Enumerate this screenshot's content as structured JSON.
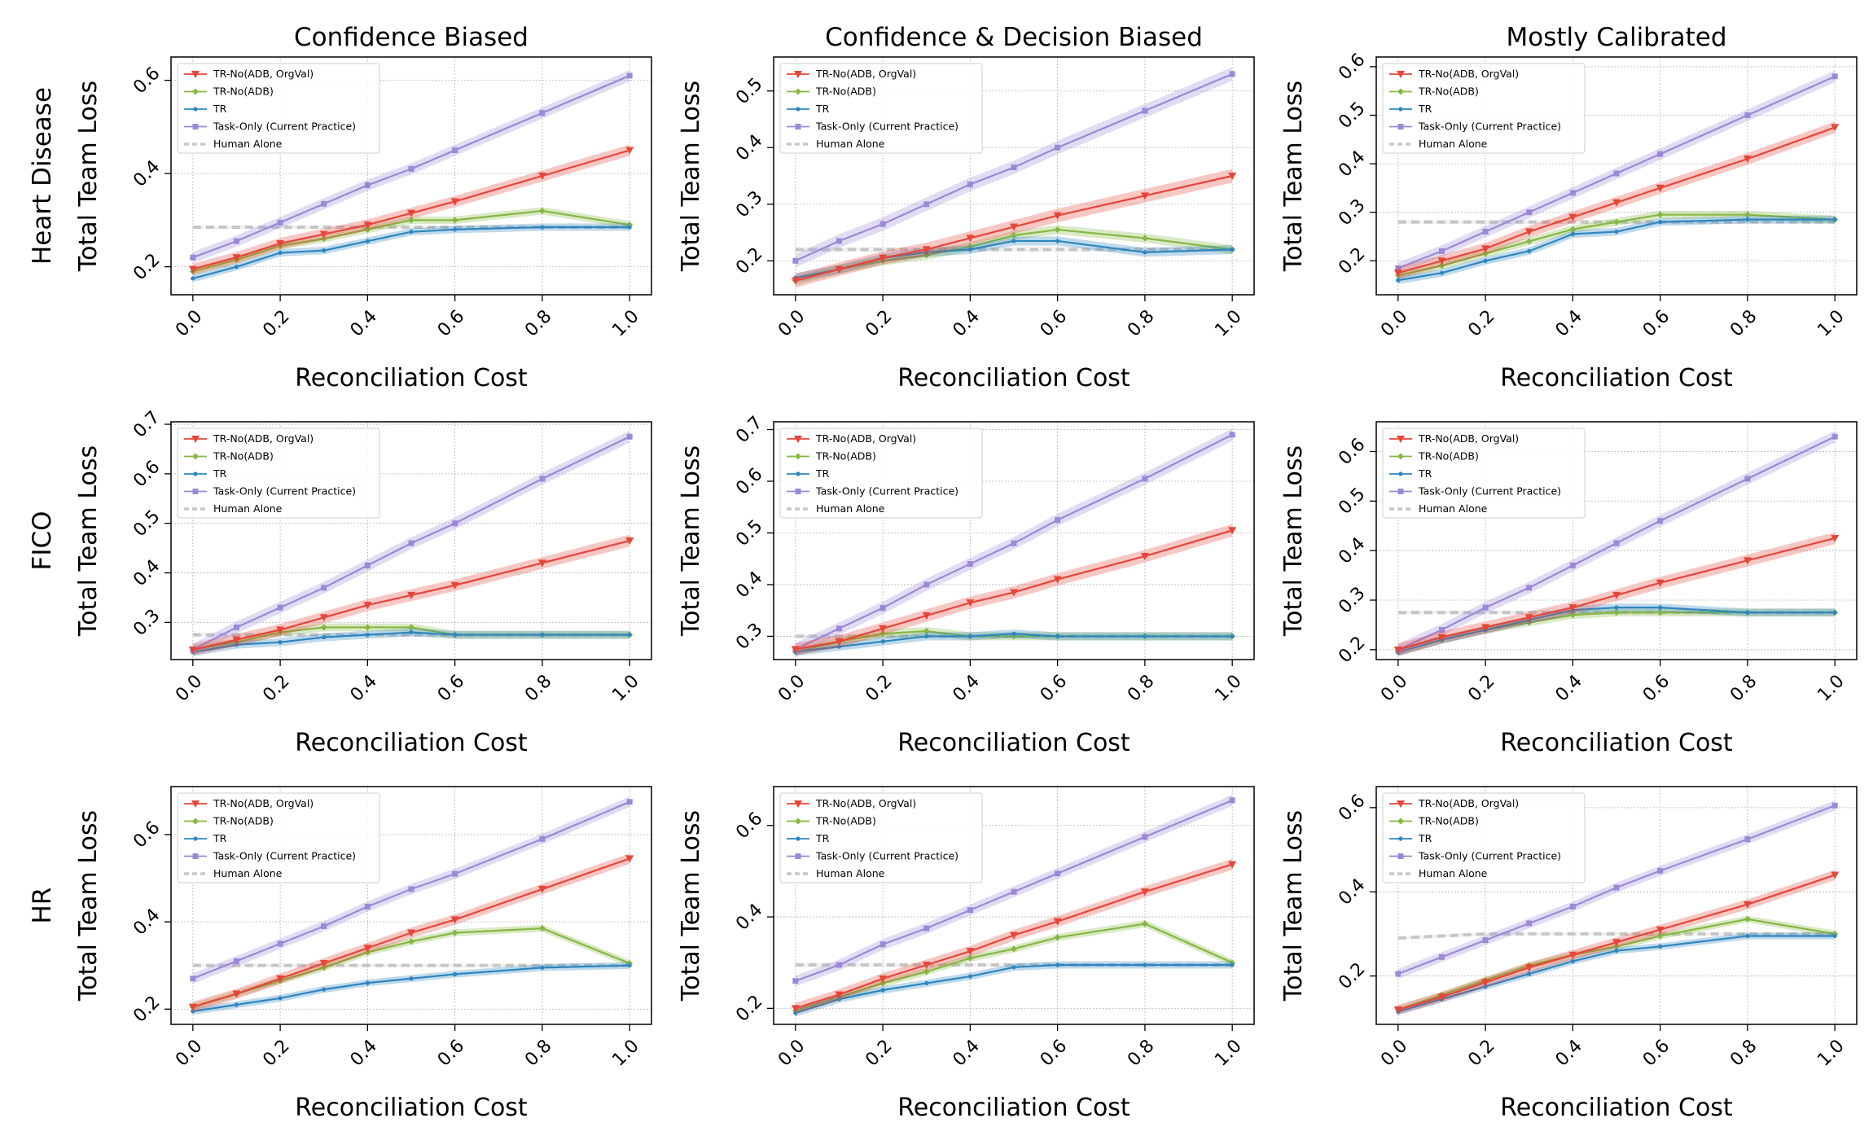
{
  "figure": {
    "column_titles": [
      "Confidence Biased",
      "Confidence & Decision Biased",
      "Mostly Calibrated"
    ],
    "row_labels": [
      "Heart Disease",
      "FICO",
      "HR"
    ]
  },
  "legend_entries": [
    "TR-No(ADB, OrgVal)",
    "TR-No(ADB)",
    "TR",
    "Task-Only (Current Practice)",
    "Human Alone"
  ],
  "colors": {
    "tr_no_adb_orgval": "#e6463a",
    "tr_no_adb": "#86b743",
    "tr": "#2f86c0",
    "task_only": "#9a8ad6",
    "human_alone": "#c6c6c6"
  },
  "chart_data": [
    {
      "type": "line",
      "row": "Heart Disease",
      "column": "Confidence Biased",
      "title": "Confidence Biased",
      "xlabel": "Reconciliation Cost",
      "ylabel": "Total Team Loss",
      "xlim": [
        -0.05,
        1.05
      ],
      "ylim": [
        0.14,
        0.65
      ],
      "yticks": [
        0.2,
        0.4,
        0.6
      ],
      "xticks": [
        0.0,
        0.2,
        0.4,
        0.6,
        0.8,
        1.0
      ],
      "grid": true,
      "legend": "top-left",
      "x": [
        0.0,
        0.1,
        0.2,
        0.3,
        0.4,
        0.5,
        0.6,
        0.8,
        1.0
      ],
      "series": [
        {
          "name": "TR-No(ADB, OrgVal)",
          "values": [
            0.195,
            0.22,
            0.25,
            0.27,
            0.29,
            0.315,
            0.34,
            0.395,
            0.45
          ]
        },
        {
          "name": "TR-No(ADB)",
          "values": [
            0.19,
            0.215,
            0.245,
            0.26,
            0.28,
            0.3,
            0.3,
            0.32,
            0.29
          ]
        },
        {
          "name": "TR",
          "values": [
            0.175,
            0.2,
            0.23,
            0.235,
            0.255,
            0.275,
            0.28,
            0.285,
            0.285
          ]
        },
        {
          "name": "Task-Only (Current Practice)",
          "values": [
            0.22,
            0.255,
            0.295,
            0.335,
            0.375,
            0.41,
            0.45,
            0.53,
            0.61
          ]
        },
        {
          "name": "Human Alone",
          "values": [
            0.285,
            0.285,
            0.285,
            0.285,
            0.285,
            0.285,
            0.285,
            0.285,
            0.285
          ]
        }
      ]
    },
    {
      "type": "line",
      "row": "Heart Disease",
      "column": "Confidence & Decision Biased",
      "title": "Confidence & Decision Biased",
      "xlabel": "Reconciliation Cost",
      "ylabel": "Total Team Loss",
      "xlim": [
        -0.05,
        1.05
      ],
      "ylim": [
        0.14,
        0.56
      ],
      "yticks": [
        0.2,
        0.3,
        0.4,
        0.5
      ],
      "xticks": [
        0.0,
        0.2,
        0.4,
        0.6,
        0.8,
        1.0
      ],
      "grid": true,
      "legend": "top-left",
      "x": [
        0.0,
        0.1,
        0.2,
        0.3,
        0.4,
        0.5,
        0.6,
        0.8,
        1.0
      ],
      "series": [
        {
          "name": "TR-No(ADB, OrgVal)",
          "values": [
            0.165,
            0.185,
            0.205,
            0.22,
            0.24,
            0.26,
            0.28,
            0.315,
            0.35
          ]
        },
        {
          "name": "TR-No(ADB)",
          "values": [
            0.165,
            0.185,
            0.2,
            0.21,
            0.225,
            0.245,
            0.255,
            0.24,
            0.22
          ]
        },
        {
          "name": "TR",
          "values": [
            0.17,
            0.185,
            0.205,
            0.215,
            0.22,
            0.235,
            0.235,
            0.215,
            0.22
          ]
        },
        {
          "name": "Task-Only (Current Practice)",
          "values": [
            0.2,
            0.235,
            0.265,
            0.3,
            0.335,
            0.365,
            0.4,
            0.465,
            0.53
          ]
        },
        {
          "name": "Human Alone",
          "values": [
            0.22,
            0.22,
            0.22,
            0.22,
            0.22,
            0.22,
            0.22,
            0.22,
            0.22
          ]
        }
      ]
    },
    {
      "type": "line",
      "row": "Heart Disease",
      "column": "Mostly Calibrated",
      "title": "Mostly Calibrated",
      "xlabel": "Reconciliation Cost",
      "ylabel": "Total Team Loss",
      "xlim": [
        -0.05,
        1.05
      ],
      "ylim": [
        0.13,
        0.62
      ],
      "yticks": [
        0.2,
        0.3,
        0.4,
        0.5,
        0.6
      ],
      "xticks": [
        0.0,
        0.2,
        0.4,
        0.6,
        0.8,
        1.0
      ],
      "grid": true,
      "legend": "top-left",
      "x": [
        0.0,
        0.1,
        0.2,
        0.3,
        0.4,
        0.5,
        0.6,
        0.8,
        1.0
      ],
      "series": [
        {
          "name": "TR-No(ADB, OrgVal)",
          "values": [
            0.175,
            0.2,
            0.225,
            0.26,
            0.29,
            0.32,
            0.35,
            0.41,
            0.475
          ]
        },
        {
          "name": "TR-No(ADB)",
          "values": [
            0.17,
            0.19,
            0.215,
            0.24,
            0.265,
            0.28,
            0.295,
            0.295,
            0.285
          ]
        },
        {
          "name": "TR",
          "values": [
            0.16,
            0.175,
            0.2,
            0.22,
            0.255,
            0.26,
            0.28,
            0.285,
            0.285
          ]
        },
        {
          "name": "Task-Only (Current Practice)",
          "values": [
            0.185,
            0.22,
            0.26,
            0.3,
            0.34,
            0.38,
            0.42,
            0.5,
            0.58
          ]
        },
        {
          "name": "Human Alone",
          "values": [
            0.28,
            0.28,
            0.28,
            0.28,
            0.28,
            0.28,
            0.28,
            0.28,
            0.28
          ]
        }
      ]
    },
    {
      "type": "line",
      "row": "FICO",
      "column": "Confidence Biased",
      "title": "",
      "xlabel": "Reconciliation Cost",
      "ylabel": "Total Team Loss",
      "xlim": [
        -0.05,
        1.05
      ],
      "ylim": [
        0.225,
        0.705
      ],
      "yticks": [
        0.3,
        0.4,
        0.5,
        0.6,
        0.7
      ],
      "xticks": [
        0.0,
        0.2,
        0.4,
        0.6,
        0.8,
        1.0
      ],
      "grid": true,
      "legend": "top-left",
      "x": [
        0.0,
        0.1,
        0.2,
        0.3,
        0.4,
        0.5,
        0.6,
        0.8,
        1.0
      ],
      "series": [
        {
          "name": "TR-No(ADB, OrgVal)",
          "values": [
            0.245,
            0.265,
            0.285,
            0.31,
            0.335,
            0.355,
            0.375,
            0.42,
            0.465
          ]
        },
        {
          "name": "TR-No(ADB)",
          "values": [
            0.245,
            0.26,
            0.28,
            0.29,
            0.29,
            0.29,
            0.275,
            0.275,
            0.275
          ]
        },
        {
          "name": "TR",
          "values": [
            0.24,
            0.255,
            0.26,
            0.27,
            0.275,
            0.28,
            0.275,
            0.275,
            0.275
          ]
        },
        {
          "name": "Task-Only (Current Practice)",
          "values": [
            0.245,
            0.29,
            0.33,
            0.37,
            0.415,
            0.46,
            0.5,
            0.59,
            0.675
          ]
        },
        {
          "name": "Human Alone",
          "values": [
            0.275,
            0.275,
            0.275,
            0.275,
            0.275,
            0.275,
            0.275,
            0.275,
            0.275
          ]
        }
      ]
    },
    {
      "type": "line",
      "row": "FICO",
      "column": "Confidence & Decision Biased",
      "title": "",
      "xlabel": "Reconciliation Cost",
      "ylabel": "Total Team Loss",
      "xlim": [
        -0.05,
        1.05
      ],
      "ylim": [
        0.255,
        0.715
      ],
      "yticks": [
        0.3,
        0.4,
        0.5,
        0.6,
        0.7
      ],
      "xticks": [
        0.0,
        0.2,
        0.4,
        0.6,
        0.8,
        1.0
      ],
      "grid": true,
      "legend": "top-left",
      "x": [
        0.0,
        0.1,
        0.2,
        0.3,
        0.4,
        0.5,
        0.6,
        0.8,
        1.0
      ],
      "series": [
        {
          "name": "TR-No(ADB, OrgVal)",
          "values": [
            0.275,
            0.29,
            0.315,
            0.34,
            0.365,
            0.385,
            0.41,
            0.455,
            0.505
          ]
        },
        {
          "name": "TR-No(ADB)",
          "values": [
            0.27,
            0.29,
            0.305,
            0.31,
            0.3,
            0.3,
            0.3,
            0.3,
            0.3
          ]
        },
        {
          "name": "TR",
          "values": [
            0.27,
            0.28,
            0.29,
            0.3,
            0.3,
            0.305,
            0.3,
            0.3,
            0.3
          ]
        },
        {
          "name": "Task-Only (Current Practice)",
          "values": [
            0.275,
            0.315,
            0.355,
            0.4,
            0.44,
            0.48,
            0.525,
            0.605,
            0.69
          ]
        },
        {
          "name": "Human Alone",
          "values": [
            0.3,
            0.3,
            0.3,
            0.3,
            0.3,
            0.3,
            0.3,
            0.3,
            0.3
          ]
        }
      ]
    },
    {
      "type": "line",
      "row": "FICO",
      "column": "Mostly Calibrated",
      "title": "",
      "xlabel": "Reconciliation Cost",
      "ylabel": "Total Team Loss",
      "xlim": [
        -0.05,
        1.05
      ],
      "ylim": [
        0.18,
        0.66
      ],
      "yticks": [
        0.2,
        0.3,
        0.4,
        0.5,
        0.6
      ],
      "xticks": [
        0.0,
        0.2,
        0.4,
        0.6,
        0.8,
        1.0
      ],
      "grid": true,
      "legend": "top-left",
      "x": [
        0.0,
        0.1,
        0.2,
        0.3,
        0.4,
        0.5,
        0.6,
        0.8,
        1.0
      ],
      "series": [
        {
          "name": "TR-No(ADB, OrgVal)",
          "values": [
            0.2,
            0.225,
            0.245,
            0.265,
            0.285,
            0.31,
            0.335,
            0.38,
            0.425
          ]
        },
        {
          "name": "TR-No(ADB)",
          "values": [
            0.195,
            0.22,
            0.24,
            0.255,
            0.27,
            0.275,
            0.275,
            0.275,
            0.275
          ]
        },
        {
          "name": "TR",
          "values": [
            0.195,
            0.22,
            0.24,
            0.26,
            0.28,
            0.285,
            0.285,
            0.275,
            0.275
          ]
        },
        {
          "name": "Task-Only (Current Practice)",
          "values": [
            0.2,
            0.24,
            0.285,
            0.325,
            0.37,
            0.415,
            0.46,
            0.545,
            0.63
          ]
        },
        {
          "name": "Human Alone",
          "values": [
            0.275,
            0.275,
            0.275,
            0.275,
            0.275,
            0.275,
            0.275,
            0.275,
            0.275
          ]
        }
      ]
    },
    {
      "type": "line",
      "row": "HR",
      "column": "Confidence Biased",
      "title": "",
      "xlabel": "Reconciliation Cost",
      "ylabel": "Total Team Loss",
      "xlim": [
        -0.05,
        1.05
      ],
      "ylim": [
        0.165,
        0.71
      ],
      "yticks": [
        0.2,
        0.4,
        0.6
      ],
      "xticks": [
        0.0,
        0.2,
        0.4,
        0.6,
        0.8,
        1.0
      ],
      "grid": true,
      "legend": "top-left",
      "x": [
        0.0,
        0.1,
        0.2,
        0.3,
        0.4,
        0.5,
        0.6,
        0.8,
        1.0
      ],
      "series": [
        {
          "name": "TR-No(ADB, OrgVal)",
          "values": [
            0.205,
            0.235,
            0.27,
            0.305,
            0.34,
            0.375,
            0.405,
            0.475,
            0.545
          ]
        },
        {
          "name": "TR-No(ADB)",
          "values": [
            0.205,
            0.235,
            0.265,
            0.295,
            0.33,
            0.355,
            0.375,
            0.385,
            0.305
          ]
        },
        {
          "name": "TR",
          "values": [
            0.195,
            0.21,
            0.225,
            0.245,
            0.26,
            0.27,
            0.28,
            0.295,
            0.3
          ]
        },
        {
          "name": "Task-Only (Current Practice)",
          "values": [
            0.27,
            0.31,
            0.35,
            0.39,
            0.435,
            0.475,
            0.51,
            0.59,
            0.675
          ]
        },
        {
          "name": "Human Alone",
          "values": [
            0.3,
            0.3,
            0.3,
            0.3,
            0.3,
            0.3,
            0.3,
            0.3,
            0.3
          ]
        }
      ]
    },
    {
      "type": "line",
      "row": "HR",
      "column": "Confidence & Decision Biased",
      "title": "",
      "xlabel": "Reconciliation Cost",
      "ylabel": "Total Team Loss",
      "xlim": [
        -0.05,
        1.05
      ],
      "ylim": [
        0.165,
        0.685
      ],
      "yticks": [
        0.2,
        0.4,
        0.6
      ],
      "xticks": [
        0.0,
        0.2,
        0.4,
        0.6,
        0.8,
        1.0
      ],
      "grid": true,
      "legend": "top-left",
      "x": [
        0.0,
        0.1,
        0.2,
        0.3,
        0.4,
        0.5,
        0.6,
        0.8,
        1.0
      ],
      "series": [
        {
          "name": "TR-No(ADB, OrgVal)",
          "values": [
            0.2,
            0.23,
            0.265,
            0.295,
            0.325,
            0.36,
            0.39,
            0.455,
            0.515
          ]
        },
        {
          "name": "TR-No(ADB)",
          "values": [
            0.195,
            0.225,
            0.255,
            0.28,
            0.31,
            0.33,
            0.355,
            0.385,
            0.3
          ]
        },
        {
          "name": "TR",
          "values": [
            0.19,
            0.22,
            0.24,
            0.255,
            0.27,
            0.29,
            0.295,
            0.295,
            0.295
          ]
        },
        {
          "name": "Task-Only (Current Practice)",
          "values": [
            0.26,
            0.295,
            0.34,
            0.375,
            0.415,
            0.455,
            0.495,
            0.575,
            0.655
          ]
        },
        {
          "name": "Human Alone",
          "values": [
            0.295,
            0.295,
            0.295,
            0.295,
            0.295,
            0.295,
            0.295,
            0.295,
            0.295
          ]
        }
      ]
    },
    {
      "type": "line",
      "row": "HR",
      "column": "Mostly Calibrated",
      "title": "",
      "xlabel": "Reconciliation Cost",
      "ylabel": "Total Team Loss",
      "xlim": [
        -0.05,
        1.05
      ],
      "ylim": [
        0.085,
        0.65
      ],
      "yticks": [
        0.2,
        0.4,
        0.6
      ],
      "xticks": [
        0.0,
        0.2,
        0.4,
        0.6,
        0.8,
        1.0
      ],
      "grid": true,
      "legend": "top-left",
      "x": [
        0.0,
        0.1,
        0.2,
        0.3,
        0.4,
        0.5,
        0.6,
        0.8,
        1.0
      ],
      "series": [
        {
          "name": "TR-No(ADB, OrgVal)",
          "values": [
            0.12,
            0.15,
            0.185,
            0.22,
            0.25,
            0.28,
            0.31,
            0.37,
            0.44
          ]
        },
        {
          "name": "TR-No(ADB)",
          "values": [
            0.12,
            0.155,
            0.19,
            0.225,
            0.25,
            0.27,
            0.295,
            0.335,
            0.3
          ]
        },
        {
          "name": "TR",
          "values": [
            0.115,
            0.145,
            0.175,
            0.205,
            0.235,
            0.26,
            0.27,
            0.295,
            0.295
          ]
        },
        {
          "name": "Task-Only (Current Practice)",
          "values": [
            0.205,
            0.245,
            0.285,
            0.325,
            0.365,
            0.41,
            0.45,
            0.525,
            0.605
          ]
        },
        {
          "name": "Human Alone",
          "values": [
            0.29,
            0.295,
            0.3,
            0.3,
            0.3,
            0.3,
            0.3,
            0.3,
            0.3
          ]
        }
      ]
    }
  ]
}
